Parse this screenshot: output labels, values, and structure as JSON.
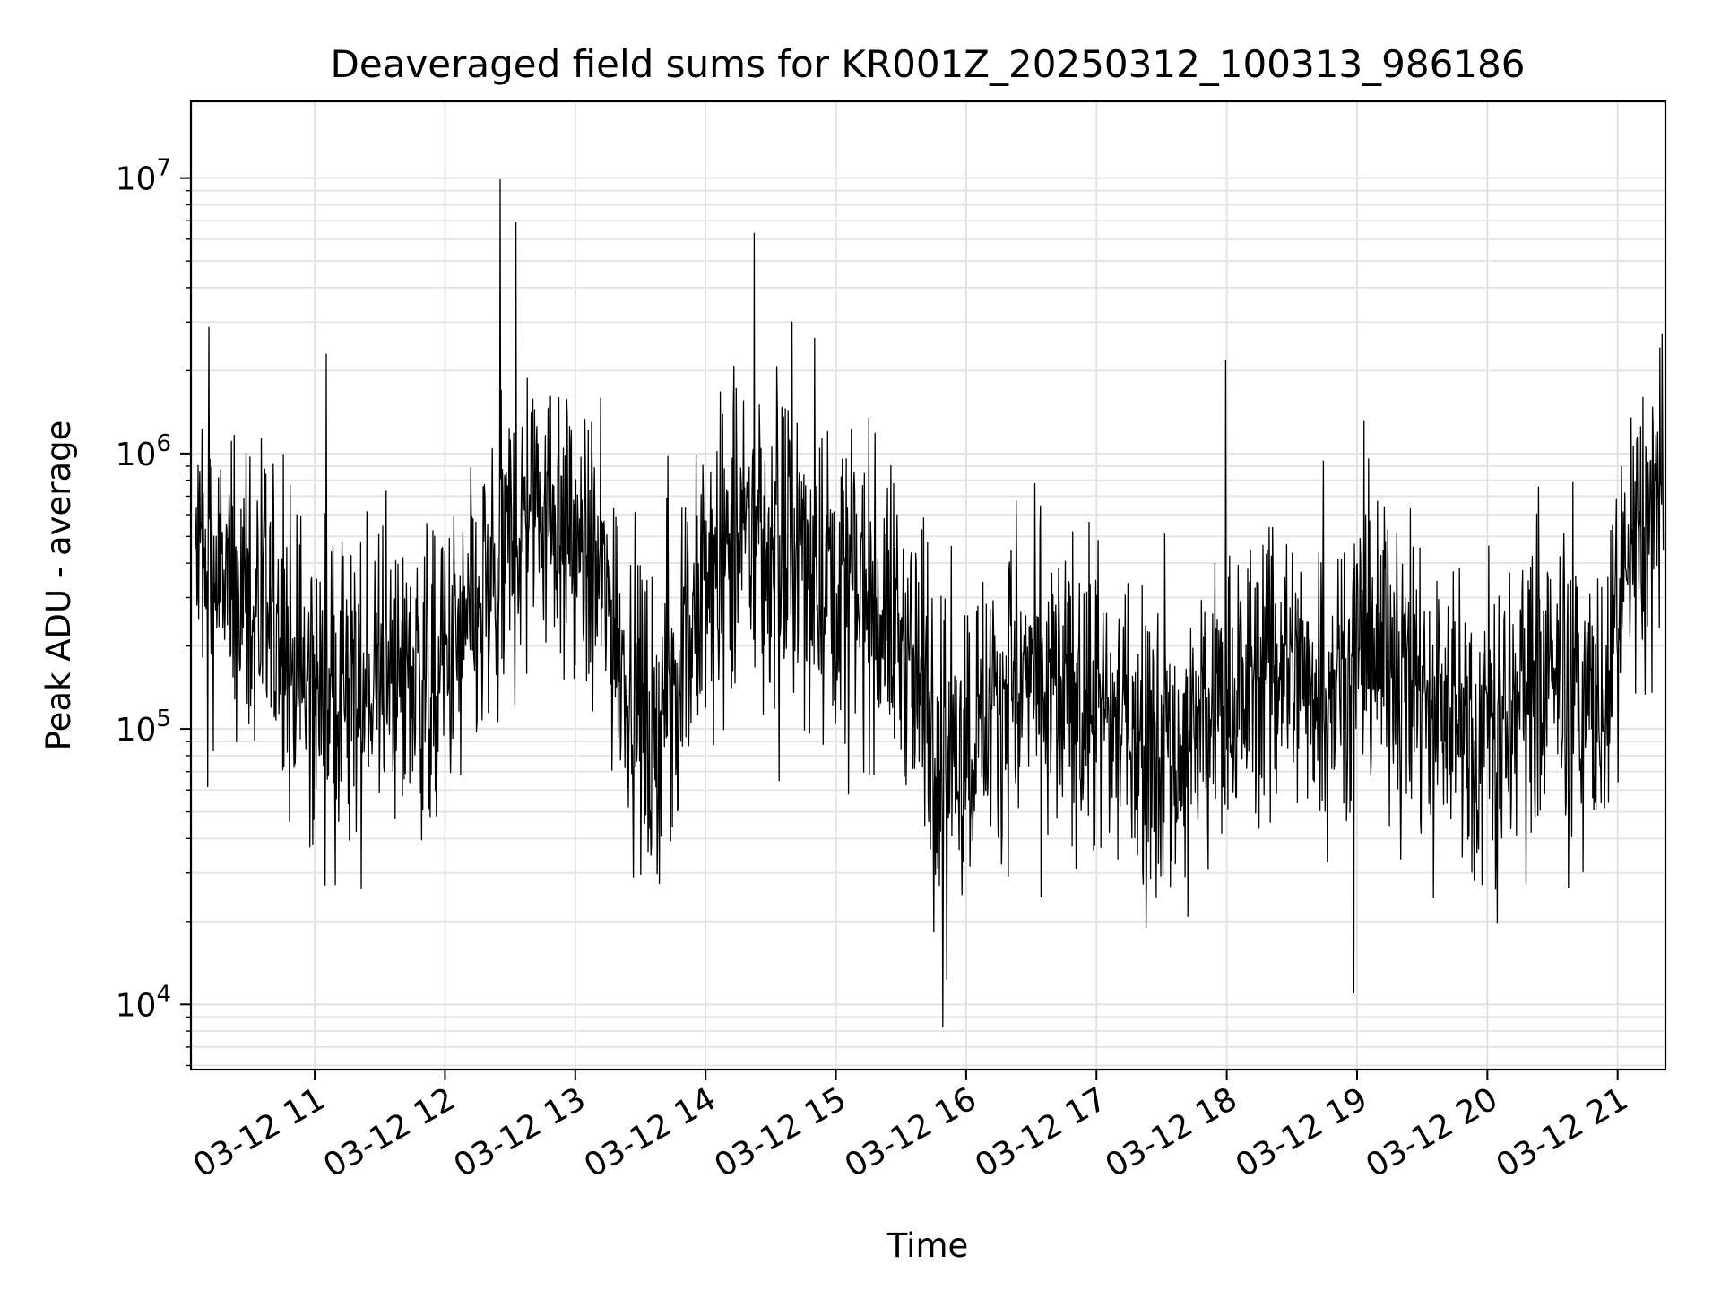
{
  "chart_data": {
    "type": "line",
    "title": "Deaveraged field sums for KR001Z_20250312_100313_986186",
    "xlabel": "Time",
    "ylabel": "Peak ADU - average",
    "yscale": "log",
    "ylim": [
      5800,
      19000000
    ],
    "xlim": [
      "2025-03-12 10:03",
      "2025-03-12 21:22"
    ],
    "grid": true,
    "line_color": "#000000",
    "x_ticks": [
      {
        "value": "2025-03-12 11:00",
        "label": "03-12 11"
      },
      {
        "value": "2025-03-12 12:00",
        "label": "03-12 12"
      },
      {
        "value": "2025-03-12 13:00",
        "label": "03-12 13"
      },
      {
        "value": "2025-03-12 14:00",
        "label": "03-12 14"
      },
      {
        "value": "2025-03-12 15:00",
        "label": "03-12 15"
      },
      {
        "value": "2025-03-12 16:00",
        "label": "03-12 16"
      },
      {
        "value": "2025-03-12 17:00",
        "label": "03-12 17"
      },
      {
        "value": "2025-03-12 18:00",
        "label": "03-12 18"
      },
      {
        "value": "2025-03-12 19:00",
        "label": "03-12 19"
      },
      {
        "value": "2025-03-12 20:00",
        "label": "03-12 20"
      },
      {
        "value": "2025-03-12 21:00",
        "label": "03-12 21"
      }
    ],
    "y_ticks": [
      {
        "value": 10000,
        "base": "10",
        "exp": "4"
      },
      {
        "value": 100000,
        "base": "10",
        "exp": "5"
      },
      {
        "value": 1000000,
        "base": "10",
        "exp": "6"
      },
      {
        "value": 10000000,
        "base": "10",
        "exp": "7"
      }
    ],
    "series": [
      {
        "x": [
          "2025-03-12 10:05",
          "2025-03-12 10:15",
          "2025-03-12 10:25",
          "2025-03-12 10:35",
          "2025-03-12 10:45",
          "2025-03-12 10:55",
          "2025-03-12 11:05",
          "2025-03-12 11:15",
          "2025-03-12 11:25",
          "2025-03-12 11:35",
          "2025-03-12 11:45",
          "2025-03-12 11:55",
          "2025-03-12 12:05",
          "2025-03-12 12:15",
          "2025-03-12 12:25",
          "2025-03-12 12:35",
          "2025-03-12 12:45",
          "2025-03-12 12:55",
          "2025-03-12 13:05",
          "2025-03-12 13:15",
          "2025-03-12 13:25",
          "2025-03-12 13:35",
          "2025-03-12 13:45",
          "2025-03-12 13:55",
          "2025-03-12 14:05",
          "2025-03-12 14:15",
          "2025-03-12 14:25",
          "2025-03-12 14:35",
          "2025-03-12 14:45",
          "2025-03-12 14:55",
          "2025-03-12 15:05",
          "2025-03-12 15:15",
          "2025-03-12 15:25",
          "2025-03-12 15:35",
          "2025-03-12 15:45",
          "2025-03-12 15:55",
          "2025-03-12 16:05",
          "2025-03-12 16:15",
          "2025-03-12 16:25",
          "2025-03-12 16:35",
          "2025-03-12 16:45",
          "2025-03-12 16:55",
          "2025-03-12 17:05",
          "2025-03-12 17:15",
          "2025-03-12 17:25",
          "2025-03-12 17:35",
          "2025-03-12 17:45",
          "2025-03-12 17:55",
          "2025-03-12 18:05",
          "2025-03-12 18:15",
          "2025-03-12 18:25",
          "2025-03-12 18:35",
          "2025-03-12 18:45",
          "2025-03-12 18:55",
          "2025-03-12 19:05",
          "2025-03-12 19:15",
          "2025-03-12 19:25",
          "2025-03-12 19:35",
          "2025-03-12 19:45",
          "2025-03-12 19:55",
          "2025-03-12 20:05",
          "2025-03-12 20:15",
          "2025-03-12 20:25",
          "2025-03-12 20:35",
          "2025-03-12 20:45",
          "2025-03-12 20:55",
          "2025-03-12 21:05",
          "2025-03-12 21:15",
          "2025-03-12 21:20"
        ],
        "y": [
          400000,
          350000,
          300000,
          250000,
          200000,
          150000,
          140000,
          130000,
          140000,
          150000,
          160000,
          150000,
          180000,
          250000,
          350000,
          600000,
          700000,
          550000,
          400000,
          300000,
          150000,
          90000,
          150000,
          250000,
          350000,
          450000,
          500000,
          450000,
          400000,
          380000,
          350000,
          300000,
          250000,
          180000,
          100000,
          80000,
          110000,
          130000,
          150000,
          140000,
          130000,
          120000,
          110000,
          100000,
          90000,
          80000,
          90000,
          110000,
          140000,
          160000,
          170000,
          160000,
          150000,
          180000,
          200000,
          190000,
          160000,
          130000,
          110000,
          100000,
          100000,
          120000,
          150000,
          140000,
          130000,
          130000,
          400000,
          600000,
          700000
        ]
      }
    ]
  }
}
